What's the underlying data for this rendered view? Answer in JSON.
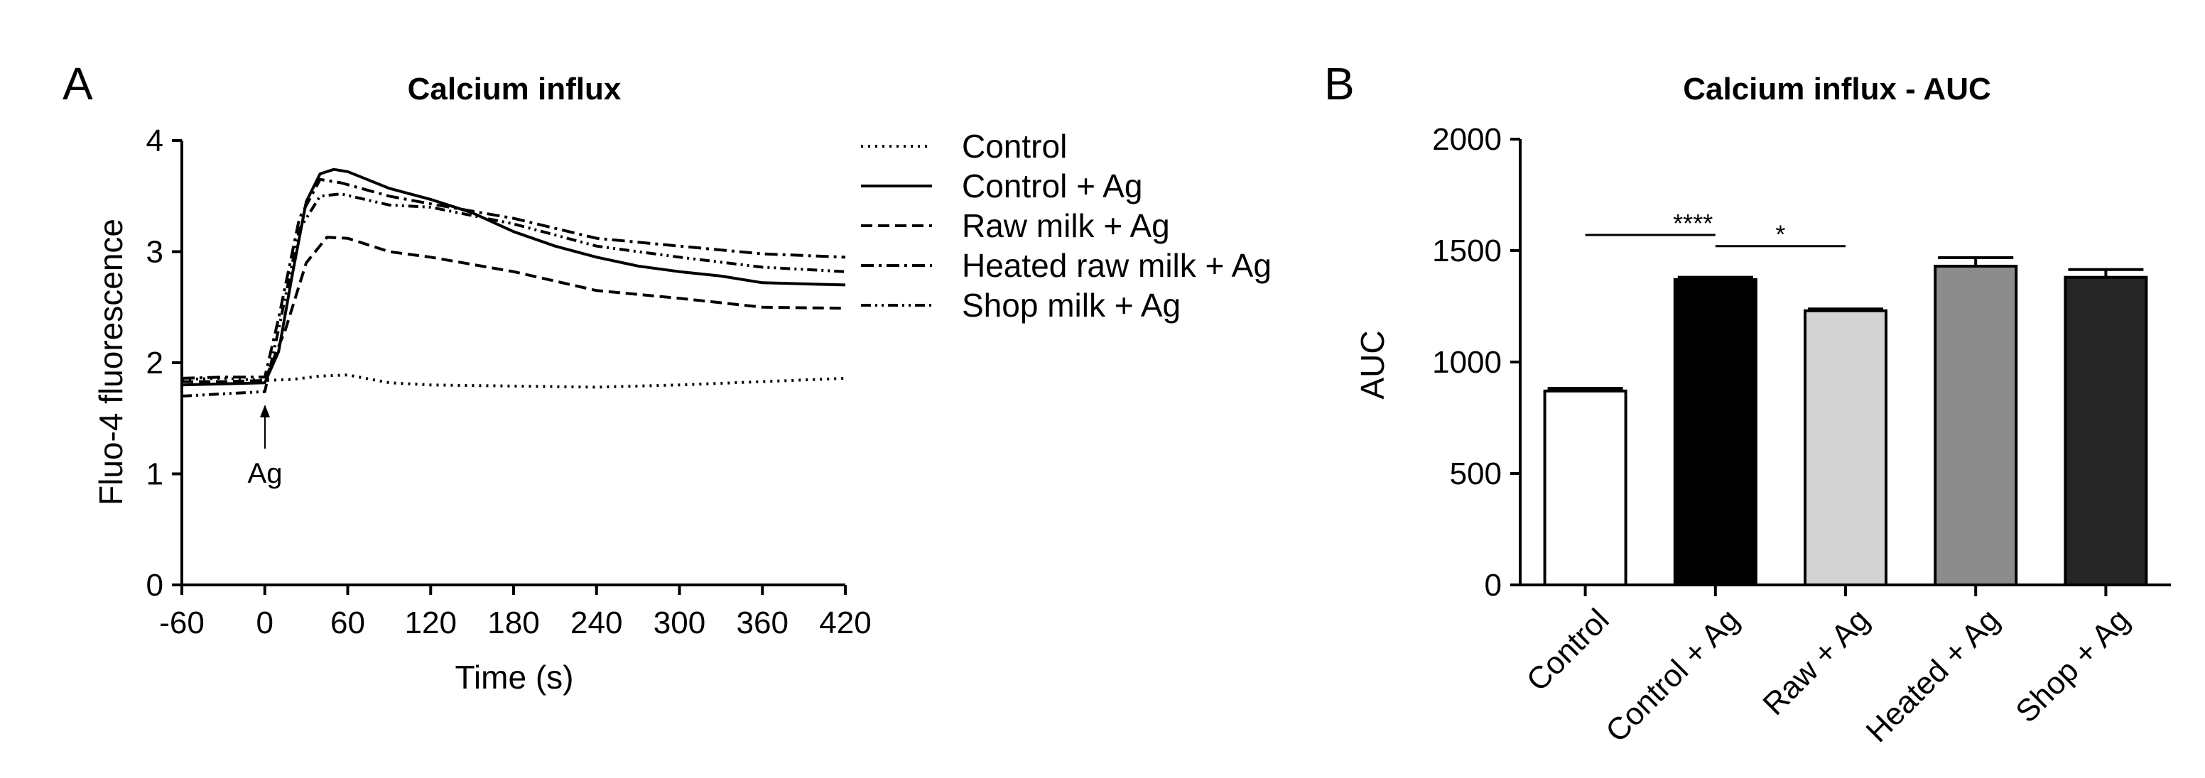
{
  "panels": {
    "a": {
      "letter": "A",
      "title": "Calcium influx"
    },
    "b": {
      "letter": "B",
      "title": "Calcium influx - AUC"
    }
  },
  "chart_data": [
    {
      "type": "line",
      "title": "Calcium influx",
      "xlabel": "Time (s)",
      "ylabel": "Fluo-4 fluorescence",
      "xlim": [
        -60,
        420
      ],
      "ylim": [
        0,
        4
      ],
      "xticks": [
        "-60",
        "0",
        "60",
        "120",
        "180",
        "240",
        "300",
        "360",
        "420"
      ],
      "yticks": [
        "0",
        "1",
        "2",
        "3",
        "4"
      ],
      "legend_position": "right",
      "annotation": {
        "text": "Ag",
        "x": 0
      },
      "series": [
        {
          "name": "Control",
          "dash": "dotted",
          "points": [
            [
              -60,
              1.85
            ],
            [
              -30,
              1.86
            ],
            [
              0,
              1.84
            ],
            [
              20,
              1.85
            ],
            [
              40,
              1.88
            ],
            [
              60,
              1.89
            ],
            [
              90,
              1.82
            ],
            [
              120,
              1.8
            ],
            [
              180,
              1.79
            ],
            [
              240,
              1.78
            ],
            [
              300,
              1.8
            ],
            [
              360,
              1.83
            ],
            [
              420,
              1.86
            ]
          ]
        },
        {
          "name": "Control + Ag",
          "dash": "solid",
          "points": [
            [
              -60,
              1.8
            ],
            [
              -30,
              1.81
            ],
            [
              0,
              1.82
            ],
            [
              10,
              2.1
            ],
            [
              20,
              2.8
            ],
            [
              30,
              3.45
            ],
            [
              40,
              3.7
            ],
            [
              50,
              3.74
            ],
            [
              60,
              3.72
            ],
            [
              90,
              3.57
            ],
            [
              120,
              3.47
            ],
            [
              150,
              3.35
            ],
            [
              180,
              3.18
            ],
            [
              210,
              3.05
            ],
            [
              240,
              2.95
            ],
            [
              270,
              2.87
            ],
            [
              300,
              2.82
            ],
            [
              330,
              2.78
            ],
            [
              360,
              2.72
            ],
            [
              390,
              2.71
            ],
            [
              420,
              2.7
            ]
          ]
        },
        {
          "name": "Raw milk + Ag",
          "dash": "dashed",
          "points": [
            [
              -60,
              1.83
            ],
            [
              -30,
              1.83
            ],
            [
              0,
              1.84
            ],
            [
              15,
              2.3
            ],
            [
              30,
              2.9
            ],
            [
              45,
              3.13
            ],
            [
              60,
              3.12
            ],
            [
              90,
              3.0
            ],
            [
              120,
              2.95
            ],
            [
              180,
              2.82
            ],
            [
              240,
              2.65
            ],
            [
              300,
              2.58
            ],
            [
              360,
              2.5
            ],
            [
              420,
              2.49
            ]
          ]
        },
        {
          "name": "Heated raw milk + Ag",
          "dash": "dashdot",
          "points": [
            [
              -60,
              1.86
            ],
            [
              -30,
              1.87
            ],
            [
              0,
              1.87
            ],
            [
              10,
              2.4
            ],
            [
              25,
              3.3
            ],
            [
              40,
              3.65
            ],
            [
              55,
              3.62
            ],
            [
              90,
              3.5
            ],
            [
              120,
              3.43
            ],
            [
              180,
              3.3
            ],
            [
              240,
              3.12
            ],
            [
              300,
              3.05
            ],
            [
              360,
              2.98
            ],
            [
              420,
              2.95
            ]
          ]
        },
        {
          "name": "Shop milk + Ag",
          "dash": "dashdotdot",
          "points": [
            [
              -60,
              1.7
            ],
            [
              -30,
              1.72
            ],
            [
              0,
              1.74
            ],
            [
              10,
              2.3
            ],
            [
              25,
              3.2
            ],
            [
              40,
              3.5
            ],
            [
              55,
              3.52
            ],
            [
              90,
              3.42
            ],
            [
              120,
              3.4
            ],
            [
              180,
              3.25
            ],
            [
              240,
              3.05
            ],
            [
              300,
              2.95
            ],
            [
              360,
              2.86
            ],
            [
              420,
              2.82
            ]
          ]
        }
      ]
    },
    {
      "type": "bar",
      "title": "Calcium influx - AUC",
      "xlabel": "",
      "ylabel": "AUC",
      "ylim": [
        0,
        2000
      ],
      "yticks": [
        "0",
        "500",
        "1000",
        "1500",
        "2000"
      ],
      "categories": [
        "Control",
        "Control + Ag",
        "Raw + Ag",
        "Heated + Ag",
        "Shop + Ag"
      ],
      "values": [
        870,
        1370,
        1230,
        1430,
        1380
      ],
      "errors": [
        12,
        10,
        8,
        38,
        35
      ],
      "colors": [
        "#ffffff",
        "#000000",
        "#d3d3d3",
        "#8c8c8c",
        "#262626"
      ],
      "significance": [
        {
          "from": 0,
          "to": 1,
          "label": "****",
          "y": 1570
        },
        {
          "from": 1,
          "to": 2,
          "label": "*",
          "y": 1520
        }
      ]
    }
  ]
}
